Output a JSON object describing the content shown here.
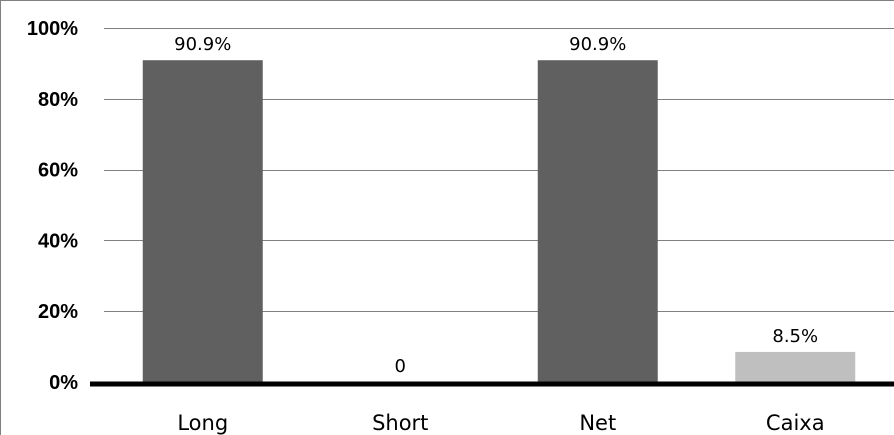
{
  "chart_data": {
    "type": "bar",
    "title": "",
    "xlabel": "",
    "ylabel": "",
    "categories": [
      "Long",
      "Short",
      "Net",
      "Caixa"
    ],
    "values": [
      90.9,
      0,
      90.9,
      8.5
    ],
    "data_labels": [
      "90.9%",
      "0",
      "90.9%",
      "8.5%"
    ],
    "ylim": [
      0,
      100
    ],
    "y_ticks": [
      0,
      20,
      40,
      60,
      80,
      100
    ],
    "y_tick_labels": [
      "0%",
      "20%",
      "40%",
      "60%",
      "80%",
      "100%"
    ],
    "grid": true,
    "legend": "none",
    "colors": {
      "bar_dark": "#606060",
      "bar_light": "#bfbfbf",
      "gridline": "#808080",
      "axis": "#000000",
      "frame": "#808080"
    },
    "bar_color_keys": [
      "bar_dark",
      "bar_dark",
      "bar_dark",
      "bar_light"
    ]
  }
}
